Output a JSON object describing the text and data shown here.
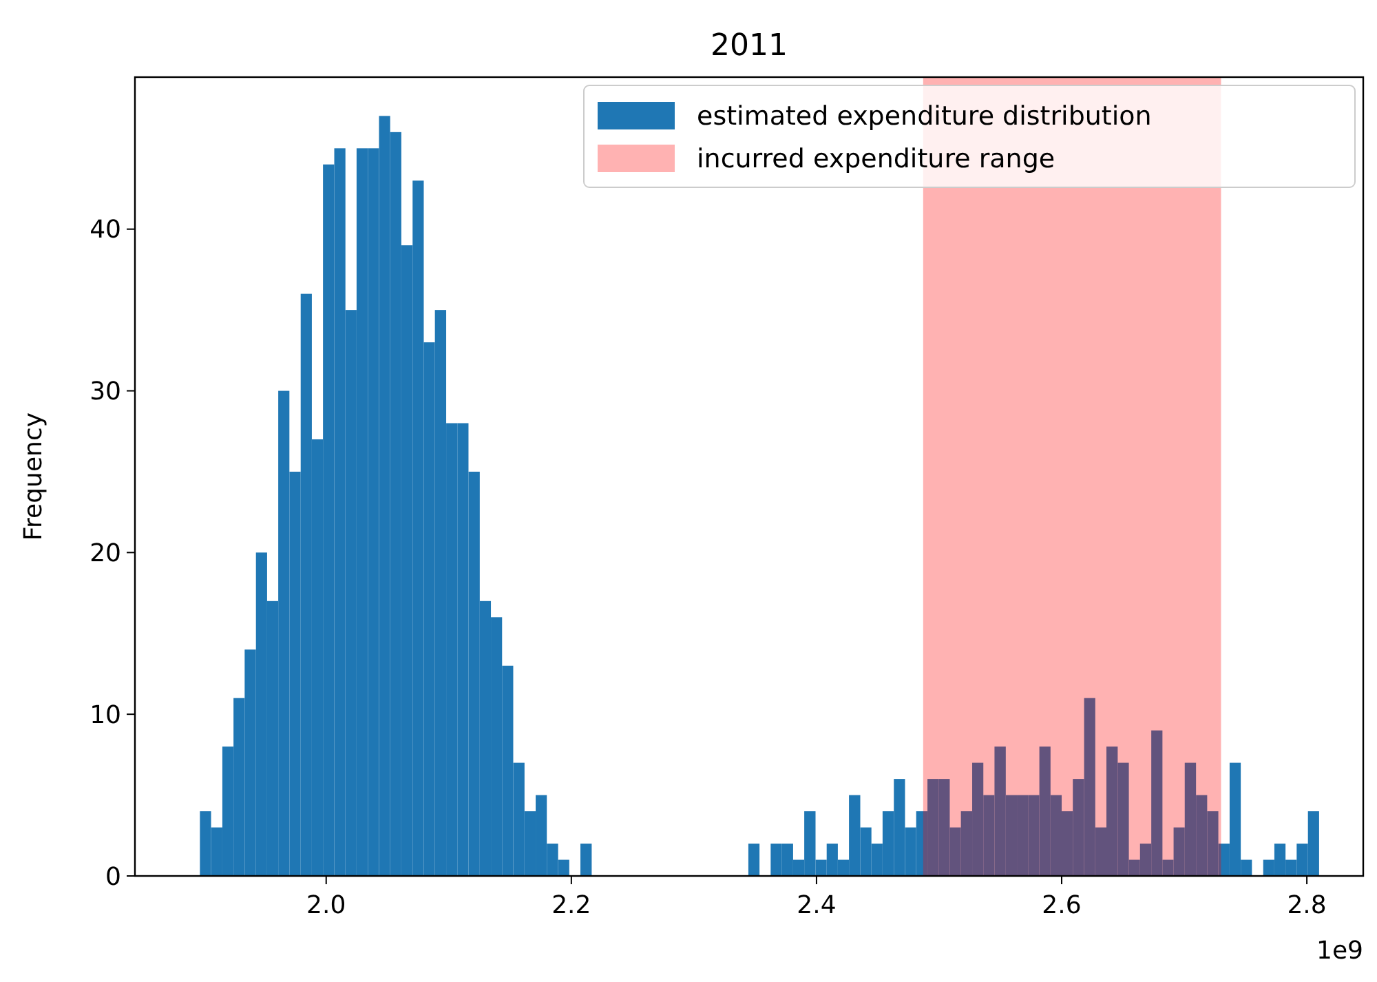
{
  "chart_data": {
    "type": "histogram",
    "title": "2011",
    "ylabel": "Frequency",
    "bins": [
      1.897,
      1.9061,
      1.9153,
      1.9244,
      1.9335,
      1.9427,
      1.9518,
      1.9609,
      1.97,
      1.9792,
      1.9883,
      1.9974,
      2.0066,
      2.0157,
      2.0248,
      2.034,
      2.0431,
      2.0522,
      2.0613,
      2.0705,
      2.0796,
      2.0887,
      2.0979,
      2.107,
      2.1161,
      2.1253,
      2.1344,
      2.1435,
      2.1526,
      2.1618,
      2.1709,
      2.18,
      2.1892,
      2.1983,
      2.2074,
      2.2166,
      2.2257,
      2.2348,
      2.2439,
      2.2531,
      2.2622,
      2.2713,
      2.2805,
      2.2896,
      2.2987,
      2.3079,
      2.317,
      2.3261,
      2.3352,
      2.3444,
      2.3535,
      2.3626,
      2.3718,
      2.3809,
      2.39,
      2.3992,
      2.4083,
      2.4174,
      2.4265,
      2.4357,
      2.4448,
      2.4539,
      2.4631,
      2.4722,
      2.4813,
      2.4905,
      2.4996,
      2.5087,
      2.5178,
      2.527,
      2.5361,
      2.5452,
      2.5544,
      2.5635,
      2.5726,
      2.5818,
      2.5909,
      2.6,
      2.6091,
      2.6183,
      2.6274,
      2.6365,
      2.6457,
      2.6548,
      2.6639,
      2.6731,
      2.6822,
      2.6913,
      2.7004,
      2.7096,
      2.7187,
      2.7278,
      2.737,
      2.7461,
      2.7552,
      2.7644,
      2.7735,
      2.7826,
      2.7917,
      2.8009,
      2.81
    ],
    "series": [
      {
        "name": "estimated expenditure distribution",
        "color": "#1f77b4",
        "values": [
          4,
          3,
          8,
          11,
          14,
          20,
          17,
          30,
          25,
          36,
          27,
          44,
          45,
          35,
          45,
          45,
          47,
          46,
          39,
          43,
          33,
          35,
          28,
          28,
          25,
          17,
          16,
          13,
          7,
          4,
          5,
          2,
          1,
          0,
          2,
          0,
          0,
          0,
          0,
          0,
          0,
          0,
          0,
          0,
          0,
          0,
          0,
          0,
          0,
          2,
          0,
          2,
          2,
          1,
          4,
          1,
          2,
          1,
          5,
          3,
          2,
          4,
          6,
          3,
          4,
          6,
          6,
          3,
          4,
          7,
          5,
          8,
          5,
          5,
          5,
          8,
          5,
          4,
          6,
          11,
          3,
          8,
          7,
          1,
          2,
          9,
          1,
          3,
          7,
          5,
          4,
          2,
          7,
          1,
          0,
          1,
          2,
          1,
          2,
          4
        ]
      }
    ],
    "bands": [
      {
        "axis": "x",
        "from": 2.487,
        "to": 2.73,
        "label": "incurred expenditure range",
        "color": "#ff0000"
      }
    ],
    "xlim": [
      1.844,
      2.846
    ],
    "ylim": [
      0,
      49.4
    ],
    "xticks": [
      {
        "value": 2,
        "label": "2.0"
      },
      2.2,
      2.4,
      2.6,
      2.8
    ],
    "yticks": [
      0,
      10,
      20,
      30,
      40
    ],
    "annotations": [
      "1e9"
    ],
    "legend": "top right",
    "grid": false
  }
}
